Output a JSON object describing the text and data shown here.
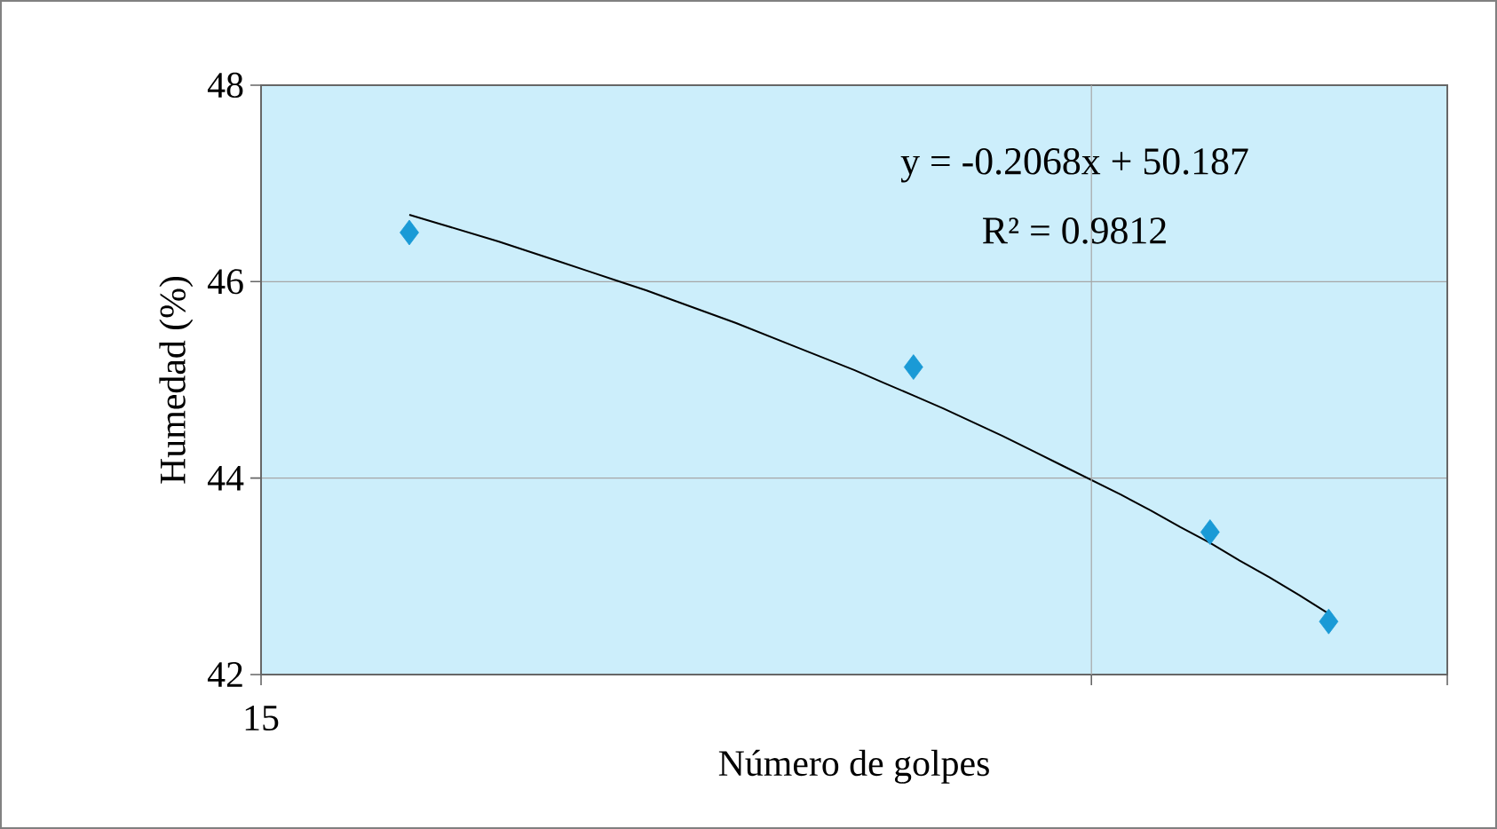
{
  "chart_data": {
    "type": "scatter",
    "xlabel": "Número de golpes",
    "ylabel": "Humedad (%)",
    "grid": "y",
    "marker": "diamond",
    "ylim": [
      42,
      48
    ],
    "yticks": [
      42,
      44,
      46,
      48
    ],
    "categories": [
      null,
      null,
      null,
      null,
      null,
      null,
      null,
      null,
      null,
      null,
      null,
      null,
      null,
      null,
      null,
      null,
      null,
      null,
      null,
      null,
      null,
      null,
      null,
      null,
      null,
      null,
      null,
      null,
      null,
      null,
      null,
      null,
      null,
      null,
      null,
      null,
      null,
      null,
      null,
      null,
      null
    ],
    "series": [
      {
        "color": "#1a9ad6",
        "values": [
          null,
          null,
          null,
          null,
          null,
          46.5,
          null,
          null,
          null,
          null,
          null,
          null,
          null,
          null,
          null,
          null,
          null,
          null,
          null,
          null,
          null,
          null,
          45.13,
          null,
          null,
          null,
          null,
          null,
          null,
          null,
          null,
          null,
          43.45,
          null,
          null,
          null,
          42.54,
          null,
          null,
          null,
          null
        ]
      },
      {
        "type": "line",
        "color": "#000000",
        "marker": "none",
        "values": [
          null,
          null,
          null,
          null,
          null,
          46.68,
          46.59,
          46.5,
          46.41,
          46.31,
          46.21,
          46.11,
          46.01,
          45.91,
          45.8,
          45.69,
          45.58,
          45.46,
          45.34,
          45.22,
          45.1,
          44.97,
          44.84,
          44.71,
          44.57,
          44.43,
          44.28,
          44.13,
          43.98,
          43.83,
          43.67,
          43.5,
          43.34,
          43.16,
          42.99,
          42.81,
          42.62,
          null,
          null,
          null,
          null
        ]
      }
    ],
    "annotations": [
      "y = -0.2068x + 50.187",
      "R² = 0.9812",
      "15"
    ]
  }
}
